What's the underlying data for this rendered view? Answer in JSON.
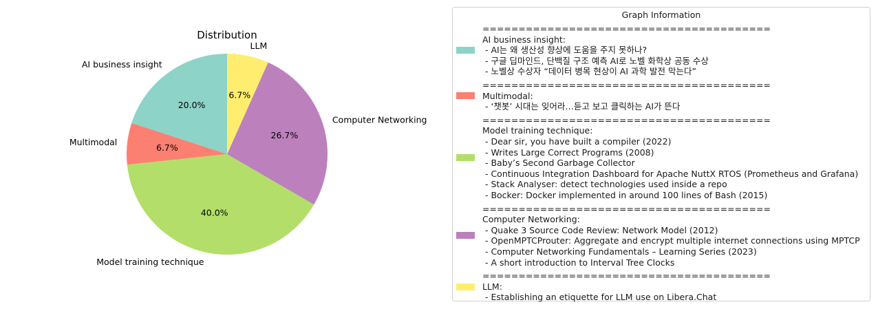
{
  "chart_data": {
    "type": "pie",
    "title": "Distribution",
    "slices": [
      {
        "label": "AI business insight",
        "value": 20.0,
        "pct_label": "20.0%",
        "color": "#8dd3c7"
      },
      {
        "label": "Multimodal",
        "value": 6.7,
        "pct_label": "6.7%",
        "color": "#fb8072"
      },
      {
        "label": "Model training technique",
        "value": 40.0,
        "pct_label": "40.0%",
        "color": "#b3de69"
      },
      {
        "label": "Computer Networking",
        "value": 26.7,
        "pct_label": "26.7%",
        "color": "#bc80bd"
      },
      {
        "label": "LLM",
        "value": 6.7,
        "pct_label": "6.7%",
        "color": "#ffed6f"
      }
    ],
    "start_angle_deg": 90,
    "direction": "counterclockwise"
  },
  "legend": {
    "title": "Graph Information",
    "entries": [
      {
        "color": "#8dd3c7",
        "lines": [
          "========================================",
          "AI business insight:",
          " - AI는 왜 생산성 향상에 도움을 주지 못하나?",
          " - 구글 딥마인드, 단백질 구조 예측 AI로 노벨 화학상 공동 수상",
          " - 노벨상 수상자 “데이터 병목 현상이 AI 과학 발전 막는다”"
        ]
      },
      {
        "color": "#fb8072",
        "lines": [
          "========================================",
          "Multimodal:",
          " - ‘챗봇’ 시대는 잊어라…듣고 보고 클릭하는 AI가 뜬다"
        ]
      },
      {
        "color": "#b3de69",
        "lines": [
          "========================================",
          "Model training technique:",
          " - Dear sir, you have built a compiler (2022)",
          " - Writes Large Correct Programs (2008)",
          " - Baby’s Second Garbage Collector",
          " - Continuous Integration Dashboard for Apache NuttX RTOS (Prometheus and Grafana)",
          " - Stack Analyser: detect technologies used inside a repo",
          " - Bocker: Docker implemented in around 100 lines of Bash (2015)"
        ]
      },
      {
        "color": "#bc80bd",
        "lines": [
          "========================================",
          "Computer Networking:",
          " - Quake 3 Source Code Review: Network Model (2012)",
          " - OpenMPTCProuter: Aggregate and encrypt multiple internet connections using MPTCP",
          " - Computer Networking Fundamentals – Learning Series (2023)",
          " - A short introduction to Interval Tree Clocks"
        ]
      },
      {
        "color": "#ffed6f",
        "lines": [
          "========================================",
          "LLM:",
          " - Establishing an etiquette for LLM use on Libera.Chat"
        ]
      }
    ]
  }
}
